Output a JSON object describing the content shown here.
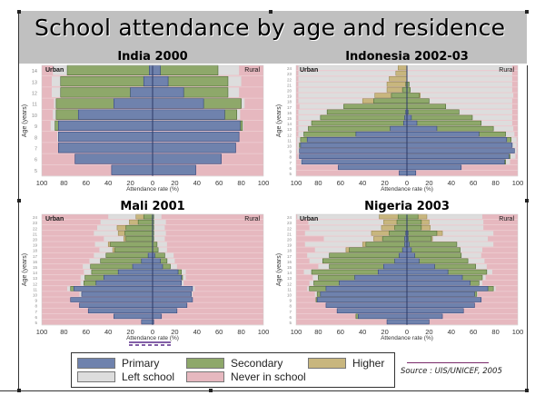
{
  "title": "School attendance by age and residence",
  "source": "Source : UIS/UNICEF, 2005",
  "colors": {
    "primary": "#6f82ad",
    "secondary": "#8ea86a",
    "higher": "#c8b67e",
    "left_school": "#dddddd",
    "never": "#e6b8bf"
  },
  "legend": [
    {
      "key": "primary",
      "label": "Primary"
    },
    {
      "key": "secondary",
      "label": "Secondary"
    },
    {
      "key": "higher",
      "label": "Higher"
    },
    {
      "key": "left_school",
      "label": "Left school"
    },
    {
      "key": "never",
      "label": "Never in school"
    }
  ],
  "chart_data": [
    {
      "type": "bar",
      "title": "India 2000",
      "xlabel": "Attendance rate (%)",
      "ylabel": "Age (years)",
      "left_label": "Urban",
      "right_label": "Rural",
      "xticks": [
        100,
        80,
        60,
        40,
        20,
        0,
        20,
        40,
        60,
        80,
        100
      ],
      "xlim": [
        -100,
        100
      ],
      "ages": [
        5,
        6,
        7,
        8,
        9,
        10,
        11,
        12,
        13,
        14
      ],
      "urban": {
        "primary": [
          37,
          70,
          85,
          85,
          85,
          67,
          35,
          20,
          8,
          3
        ],
        "secondary": [
          0,
          0,
          0,
          0,
          3,
          20,
          52,
          63,
          75,
          74
        ],
        "higher": [
          0,
          0,
          0,
          0,
          0,
          0,
          0,
          0,
          0,
          0
        ],
        "left_school": [
          0,
          0,
          0,
          1,
          4,
          3,
          2,
          8,
          8,
          13
        ]
      },
      "rural": {
        "primary": [
          39,
          62,
          75,
          78,
          79,
          65,
          46,
          28,
          14,
          7
        ],
        "secondary": [
          0,
          0,
          0,
          0,
          2,
          11,
          34,
          40,
          54,
          52
        ],
        "higher": [
          0,
          0,
          0,
          0,
          0,
          0,
          0,
          0,
          0,
          0
        ],
        "left_school": [
          0,
          0,
          0,
          0,
          1,
          3,
          3,
          10,
          12,
          19
        ]
      }
    },
    {
      "type": "bar",
      "title": "Indonesia 2002-03",
      "xlabel": "Attendance rate (%)",
      "ylabel": "Age (years)",
      "left_label": "Urban",
      "right_label": "Rural",
      "xticks": [
        100,
        80,
        60,
        40,
        20,
        0,
        20,
        40,
        60,
        80,
        100
      ],
      "xlim": [
        -100,
        100
      ],
      "ages": [
        5,
        6,
        7,
        8,
        9,
        10,
        11,
        12,
        13,
        14,
        15,
        16,
        17,
        18,
        19,
        20,
        21,
        22,
        23,
        24
      ],
      "urban": {
        "primary": [
          7,
          62,
          95,
          97,
          97,
          96,
          90,
          46,
          15,
          3,
          2,
          1,
          0,
          0,
          0,
          0,
          0,
          0,
          0,
          0
        ],
        "secondary": [
          0,
          0,
          0,
          0,
          0,
          1,
          6,
          47,
          74,
          83,
          76,
          71,
          57,
          30,
          14,
          4,
          1,
          0,
          0,
          0
        ],
        "higher": [
          0,
          0,
          0,
          0,
          0,
          0,
          0,
          0,
          0,
          0,
          0,
          0,
          0,
          10,
          15,
          14,
          17,
          16,
          10,
          8
        ],
        "left_school": [
          0,
          0,
          1,
          1,
          2,
          2,
          3,
          5,
          9,
          12,
          20,
          26,
          40,
          58,
          69,
          80,
          80,
          82,
          88,
          90
        ]
      },
      "rural": {
        "primary": [
          8,
          49,
          88,
          92,
          97,
          95,
          90,
          65,
          27,
          9,
          4,
          1,
          0,
          0,
          0,
          0,
          0,
          0,
          0,
          0
        ],
        "secondary": [
          0,
          0,
          1,
          1,
          0,
          0,
          4,
          24,
          51,
          58,
          55,
          46,
          35,
          20,
          11,
          3,
          2,
          0,
          0,
          0
        ],
        "higher": [
          0,
          0,
          0,
          0,
          0,
          0,
          0,
          0,
          0,
          0,
          0,
          0,
          0,
          0,
          1,
          0,
          0,
          0,
          0,
          0
        ],
        "left_school": [
          0,
          0,
          4,
          5,
          2,
          4,
          5,
          8,
          18,
          28,
          36,
          48,
          60,
          75,
          84,
          92,
          93,
          95,
          95,
          95
        ]
      }
    },
    {
      "type": "bar",
      "title": "Mali 2001",
      "xlabel": "Attendance rate (%)",
      "ylabel": "Age (years)",
      "left_label": "Urban",
      "right_label": "Rural",
      "xticks": [
        100,
        80,
        60,
        40,
        20,
        0,
        20,
        40,
        60,
        80,
        100
      ],
      "xlim": [
        -100,
        100
      ],
      "ages": [
        5,
        6,
        7,
        8,
        9,
        10,
        11,
        12,
        13,
        14,
        15,
        16,
        17,
        18,
        19,
        20,
        21,
        22,
        23,
        24
      ],
      "urban": {
        "primary": [
          10,
          35,
          58,
          66,
          74,
          64,
          71,
          51,
          44,
          31,
          18,
          10,
          4,
          0,
          0,
          0,
          0,
          0,
          0,
          0
        ],
        "secondary": [
          0,
          0,
          0,
          0,
          0,
          0,
          3,
          11,
          17,
          24,
          38,
          37,
          38,
          34,
          38,
          24,
          25,
          24,
          13,
          8
        ],
        "higher": [
          0,
          0,
          0,
          0,
          0,
          0,
          0,
          0,
          0,
          0,
          0,
          0,
          0,
          2,
          2,
          2,
          6,
          8,
          8,
          7
        ],
        "left_school": [
          0,
          0,
          0,
          0,
          0,
          2,
          3,
          3,
          4,
          7,
          7,
          10,
          11,
          12,
          12,
          18,
          22,
          18,
          26,
          25
        ]
      },
      "rural": {
        "primary": [
          1,
          8,
          22,
          31,
          36,
          35,
          36,
          26,
          26,
          23,
          9,
          7,
          2,
          0,
          0,
          0,
          0,
          0,
          0,
          0
        ],
        "secondary": [
          0,
          0,
          0,
          0,
          0,
          0,
          0,
          0,
          1,
          3,
          7,
          6,
          9,
          5,
          4,
          1,
          1,
          1,
          1,
          1
        ],
        "higher": [
          0,
          0,
          0,
          0,
          0,
          0,
          0,
          0,
          0,
          0,
          0,
          0,
          0,
          0,
          0,
          0,
          0,
          0,
          0,
          0
        ],
        "left_school": [
          0,
          0,
          0,
          0,
          0,
          1,
          2,
          2,
          3,
          4,
          6,
          7,
          8,
          8,
          9,
          10,
          11,
          10,
          11,
          7
        ]
      }
    },
    {
      "type": "bar",
      "title": "Nigeria 2003",
      "xlabel": "Attendance rate (%)",
      "ylabel": "Age (years)",
      "left_label": "Urban",
      "right_label": "Rural",
      "xticks": [
        100,
        80,
        60,
        40,
        20,
        0,
        20,
        40,
        60,
        80,
        100
      ],
      "xlim": [
        -100,
        100
      ],
      "ages": [
        5,
        6,
        7,
        8,
        9,
        10,
        11,
        12,
        13,
        14,
        15,
        16,
        17,
        18,
        19,
        20,
        21,
        22,
        23,
        24
      ],
      "urban": {
        "primary": [
          18,
          44,
          63,
          73,
          81,
          78,
          73,
          61,
          47,
          26,
          21,
          11,
          7,
          4,
          2,
          2,
          1,
          0,
          0,
          0
        ],
        "secondary": [
          0,
          2,
          0,
          0,
          1,
          3,
          15,
          23,
          33,
          60,
          49,
          65,
          63,
          48,
          35,
          20,
          15,
          11,
          9,
          8
        ],
        "higher": [
          0,
          0,
          0,
          0,
          0,
          0,
          0,
          0,
          0,
          0,
          0,
          0,
          0,
          3,
          3,
          8,
          16,
          12,
          12,
          17
        ],
        "left_school": [
          0,
          0,
          0,
          0,
          0,
          2,
          2,
          4,
          5,
          7,
          10,
          12,
          20,
          28,
          52,
          45,
          60,
          65,
          68,
          74
        ]
      },
      "rural": {
        "primary": [
          20,
          32,
          51,
          61,
          67,
          61,
          73,
          57,
          50,
          37,
          25,
          11,
          7,
          4,
          2,
          1,
          1,
          0,
          0,
          0
        ],
        "secondary": [
          0,
          0,
          0,
          0,
          0,
          2,
          5,
          8,
          18,
          35,
          37,
          44,
          42,
          44,
          43,
          21,
          26,
          13,
          13,
          10
        ],
        "higher": [
          0,
          0,
          0,
          0,
          0,
          0,
          0,
          0,
          0,
          0,
          0,
          0,
          0,
          0,
          0,
          1,
          5,
          8,
          7,
          8
        ],
        "left_school": [
          0,
          0,
          0,
          0,
          0,
          1,
          2,
          3,
          3,
          5,
          10,
          15,
          18,
          20,
          33,
          50,
          46,
          48,
          49,
          50
        ]
      }
    }
  ]
}
